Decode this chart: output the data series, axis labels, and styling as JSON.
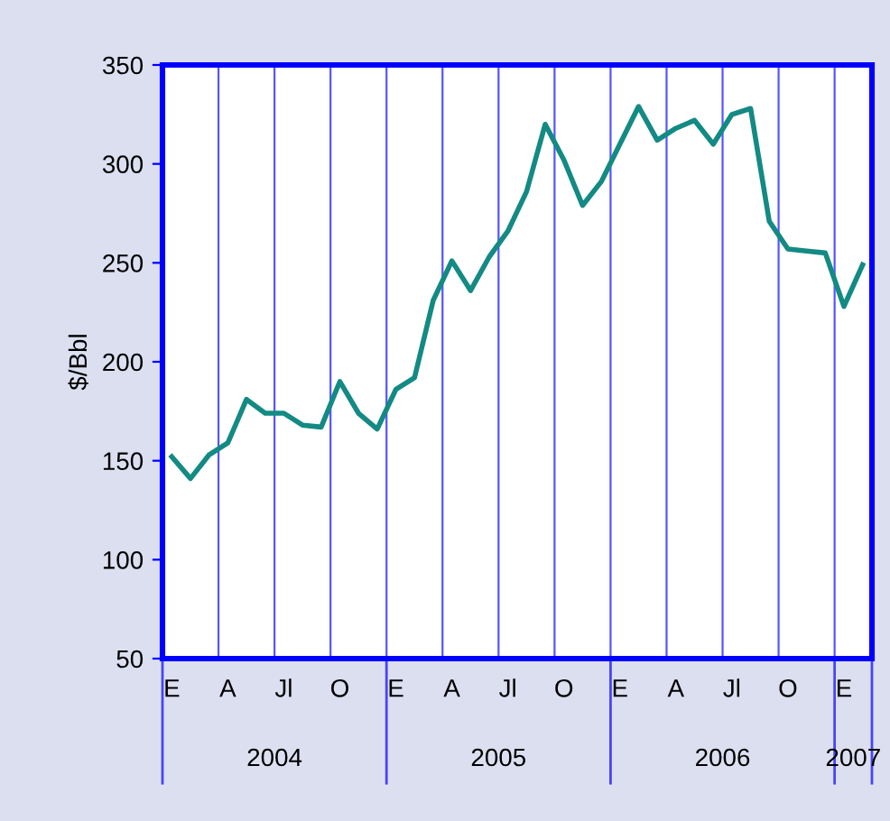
{
  "chart_data": {
    "type": "line",
    "ylabel": "$/Bbl",
    "categories": [
      "E",
      null,
      null,
      "A",
      null,
      null,
      "Jl",
      null,
      null,
      "O",
      null,
      null,
      "E",
      null,
      null,
      "A",
      null,
      null,
      "Jl",
      null,
      null,
      "O",
      null,
      null,
      "E",
      null,
      null,
      "A",
      null,
      null,
      "Jl",
      null,
      null,
      "O",
      null,
      null,
      "E",
      null
    ],
    "series": [
      {
        "color": "#138a83",
        "values": [
          152,
          141,
          153,
          159,
          181,
          174,
          174,
          168,
          167,
          190,
          174,
          166,
          186,
          192,
          231,
          251,
          236,
          253,
          266,
          286,
          320,
          302,
          279,
          291,
          310,
          329,
          312,
          318,
          322,
          310,
          325,
          328,
          271,
          257,
          256,
          255,
          228,
          249
        ]
      }
    ],
    "annotations": [
      "2004",
      "2005",
      "2006",
      "2007"
    ],
    "ylim": [
      50,
      350
    ],
    "yticks": [
      50,
      100,
      150,
      200,
      250,
      300,
      350
    ],
    "grid": "x",
    "marker": "none",
    "line_style": "solid",
    "legend": false
  }
}
